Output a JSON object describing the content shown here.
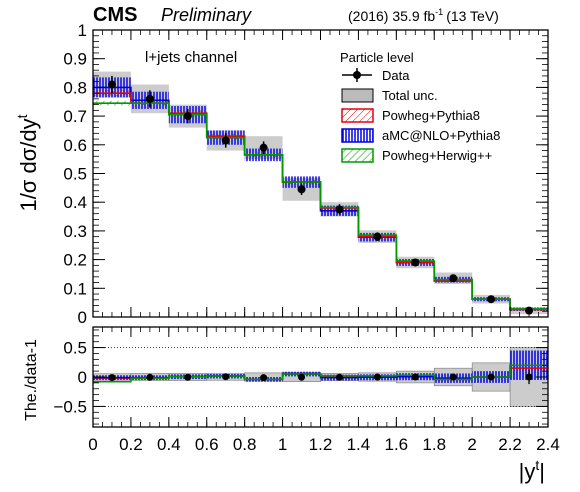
{
  "header": {
    "experiment": "CMS",
    "status": "Preliminary",
    "lumi_prefix": "(2016) 35.9 fb",
    "lumi_exp": "-1",
    "lumi_suffix": "(13 TeV)"
  },
  "channel_label": "l+jets channel",
  "legend": {
    "title": "Particle level",
    "entries": [
      {
        "key": "data",
        "label": "Data",
        "style": "marker"
      },
      {
        "key": "unc",
        "label": "Total unc.",
        "style": "box",
        "color": "#bbbbbb"
      },
      {
        "key": "pp8",
        "label": "Powheg+Pythia8",
        "style": "hatch",
        "color": "#e8000b"
      },
      {
        "key": "amc",
        "label": "aMC@NLO+Pythia8",
        "style": "vhatch",
        "color": "#0000e0"
      },
      {
        "key": "phw",
        "label": "Powheg+Herwig++",
        "style": "hatch",
        "color": "#009900"
      }
    ]
  },
  "chart_data": {
    "type": "step",
    "xlabel_main": "|y",
    "xlabel_sup": "t",
    "xlabel_end": "|",
    "ylabel": "1/σ dσ/dy",
    "ylabel_sup": "t",
    "ratio_ylabel": "The./data-1",
    "bin_edges": [
      0,
      0.2,
      0.4,
      0.6,
      0.8,
      1.0,
      1.2,
      1.4,
      1.6,
      1.8,
      2.0,
      2.2,
      2.4
    ],
    "xlim": [
      0,
      2.4
    ],
    "xticks": [
      "0",
      "0.2",
      "0.4",
      "0.6",
      "0.8",
      "1",
      "1.2",
      "1.4",
      "1.6",
      "1.8",
      "2",
      "2.2",
      "2.4"
    ],
    "ylim": [
      0,
      1
    ],
    "yticks": [
      "0",
      "0.1",
      "0.2",
      "0.3",
      "0.4",
      "0.5",
      "0.6",
      "0.7",
      "0.8",
      "0.9",
      "1"
    ],
    "ratio_ylim": [
      -0.85,
      0.85
    ],
    "ratio_yticks": [
      "−0.5",
      "0",
      "0.5"
    ],
    "data": [
      0.81,
      0.76,
      0.7,
      0.615,
      0.59,
      0.445,
      0.375,
      0.28,
      0.19,
      0.135,
      0.062,
      0.022
    ],
    "data_err": [
      0.03,
      0.03,
      0.025,
      0.025,
      0.022,
      0.02,
      0.018,
      0.015,
      0.012,
      0.01,
      0.007,
      0.005
    ],
    "total_unc": [
      0.045,
      0.05,
      0.04,
      0.035,
      0.04,
      0.04,
      0.025,
      0.022,
      0.02,
      0.02,
      0.015,
      0.012
    ],
    "series": [
      {
        "key": "pp8",
        "name": "Powheg+Pythia8",
        "color": "#e8000b",
        "values": [
          0.78,
          0.745,
          0.71,
          0.63,
          0.565,
          0.47,
          0.38,
          0.28,
          0.19,
          0.125,
          0.062,
          0.026
        ],
        "err": [
          0.01,
          0.01,
          0.01,
          0.009,
          0.008,
          0.008,
          0.007,
          0.006,
          0.005,
          0.004,
          0.003,
          0.002
        ]
      },
      {
        "key": "amc",
        "name": "aMC@NLO+Pythia8",
        "color": "#0000e0",
        "values": [
          0.8,
          0.755,
          0.705,
          0.625,
          0.565,
          0.47,
          0.37,
          0.278,
          0.19,
          0.13,
          0.062,
          0.027
        ],
        "err": [
          0.035,
          0.03,
          0.03,
          0.025,
          0.022,
          0.02,
          0.018,
          0.015,
          0.012,
          0.01,
          0.007,
          0.006
        ]
      },
      {
        "key": "phw",
        "name": "Powheg+Herwig++",
        "color": "#009900",
        "values": [
          0.745,
          0.745,
          0.705,
          0.625,
          0.565,
          0.47,
          0.382,
          0.285,
          0.195,
          0.13,
          0.062,
          0.028
        ],
        "err": [
          0.008,
          0.008,
          0.008,
          0.007,
          0.006,
          0.006,
          0.006,
          0.005,
          0.004,
          0.003,
          0.002,
          0.002
        ]
      }
    ],
    "ratio": {
      "data_points": [
        -0.01,
        -0.005,
        -0.005,
        0.005,
        -0.01,
        -0.005,
        -0.005,
        0.0,
        0.0,
        0.0,
        0.0,
        0.0
      ],
      "data_err": [
        0.03,
        0.03,
        0.025,
        0.025,
        0.03,
        0.03,
        0.03,
        0.03,
        0.03,
        0.04,
        0.05,
        0.12
      ],
      "unc": [
        0.055,
        0.06,
        0.06,
        0.055,
        0.07,
        0.08,
        0.06,
        0.07,
        0.1,
        0.15,
        0.24,
        0.5
      ],
      "pp8": [
        -0.02,
        -0.02,
        0.01,
        0.02,
        -0.04,
        0.05,
        0.01,
        0.0,
        0.01,
        -0.04,
        0.0,
        0.15
      ],
      "amc": [
        -0.01,
        -0.01,
        0.005,
        0.015,
        -0.04,
        0.05,
        -0.01,
        -0.005,
        0.005,
        -0.02,
        0.0,
        0.2
      ],
      "amc_err": [
        0.04,
        0.04,
        0.04,
        0.04,
        0.04,
        0.04,
        0.05,
        0.05,
        0.06,
        0.08,
        0.1,
        0.25
      ],
      "phw": [
        -0.08,
        -0.02,
        0.005,
        0.015,
        -0.04,
        0.05,
        0.02,
        0.02,
        0.03,
        -0.04,
        0.0,
        0.2
      ]
    }
  }
}
